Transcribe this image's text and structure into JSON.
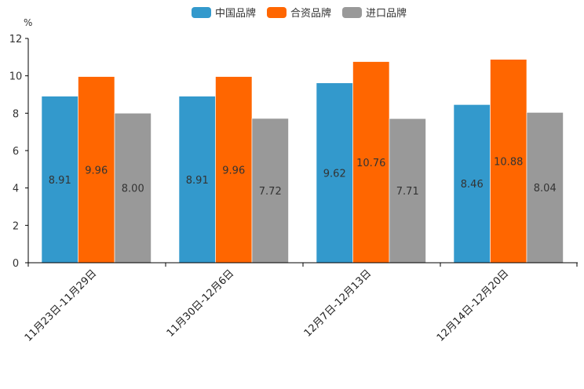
{
  "chart_data": {
    "type": "bar",
    "title": "",
    "xlabel": "",
    "ylabel": "%",
    "ylim": [
      0,
      12
    ],
    "yticks": [
      0,
      2,
      4,
      6,
      8,
      10,
      12
    ],
    "grid": false,
    "legend_position": "top-center",
    "categories": [
      "11月23日-11月29日",
      "11月30日-12月6日",
      "12月7日-12月13日",
      "12月14日-12月20日"
    ],
    "series": [
      {
        "name": "中国品牌",
        "color": "#3399cc",
        "values": [
          8.91,
          8.91,
          9.62,
          8.46
        ],
        "labels": [
          "8.91",
          "8.91",
          "9.62",
          "8.46"
        ]
      },
      {
        "name": "合资品牌",
        "color": "#ff6600",
        "values": [
          9.96,
          9.96,
          10.76,
          10.88
        ],
        "labels": [
          "9.96",
          "9.96",
          "10.76",
          "10.88"
        ]
      },
      {
        "name": "进口品牌",
        "color": "#999999",
        "values": [
          8.0,
          7.72,
          7.71,
          8.04
        ],
        "labels": [
          "8.00",
          "7.72",
          "7.71",
          "8.04"
        ]
      }
    ]
  }
}
